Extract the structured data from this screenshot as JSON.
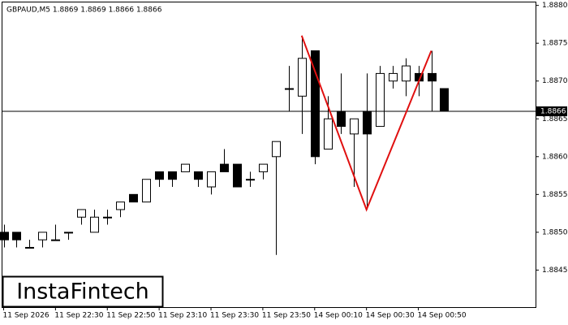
{
  "chart_data": {
    "type": "candlestick",
    "title": "GBPAUD,M5  1.8869 1.8869 1.8866 1.8866",
    "watermark": "InstaFintech",
    "categories": [
      "11 Sep 2026",
      null,
      null,
      null,
      "11 Sep 22:30",
      null,
      null,
      null,
      "11 Sep 22:50",
      null,
      null,
      null,
      "11 Sep 23:10",
      null,
      null,
      null,
      "11 Sep 23:30",
      null,
      null,
      null,
      "11 Sep 23:50",
      null,
      null,
      null,
      "14 Sep 00:10",
      null,
      null,
      null,
      "14 Sep 00:30",
      null,
      null,
      null,
      "14 Sep 00:50",
      null,
      null
    ],
    "open": [
      1.885,
      1.885,
      1.8848,
      1.8849,
      1.8849,
      1.885,
      1.8852,
      1.885,
      1.8852,
      1.8853,
      1.8855,
      1.8854,
      1.8858,
      1.8858,
      1.8858,
      1.8858,
      1.8856,
      1.8859,
      1.8859,
      1.8857,
      1.8858,
      1.886,
      1.8869,
      1.8868,
      1.8874,
      1.8861,
      1.8866,
      1.8863,
      1.8866,
      1.8864,
      1.887,
      1.887,
      1.8871,
      1.8871,
      1.8869
    ],
    "high": [
      1.8851,
      1.885,
      1.8849,
      1.885,
      1.8851,
      1.885,
      1.8853,
      1.8853,
      1.8853,
      1.8854,
      1.8855,
      1.8857,
      1.8858,
      1.8858,
      1.8859,
      1.8858,
      1.8858,
      1.8861,
      1.8859,
      1.8858,
      1.8859,
      1.8862,
      1.8872,
      1.8876,
      1.8874,
      1.8868,
      1.8871,
      1.8865,
      1.8871,
      1.8872,
      1.8872,
      1.8873,
      1.8872,
      1.8874,
      1.8869
    ],
    "low": [
      1.8848,
      1.8848,
      1.8848,
      1.8848,
      1.8849,
      1.8849,
      1.8851,
      1.885,
      1.8851,
      1.8852,
      1.8854,
      1.8854,
      1.8856,
      1.8856,
      1.8858,
      1.8856,
      1.8855,
      1.8858,
      1.8856,
      1.8856,
      1.8857,
      1.8847,
      1.8866,
      1.8863,
      1.8859,
      1.8861,
      1.8863,
      1.8856,
      1.8853,
      1.8864,
      1.8869,
      1.8868,
      1.8868,
      1.8866,
      1.8866
    ],
    "close": [
      1.8849,
      1.8849,
      1.8848,
      1.885,
      1.8849,
      1.885,
      1.8853,
      1.8852,
      1.8852,
      1.8854,
      1.8854,
      1.8857,
      1.8857,
      1.8857,
      1.8859,
      1.8857,
      1.8858,
      1.8858,
      1.8856,
      1.8857,
      1.8859,
      1.8862,
      1.8869,
      1.8873,
      1.886,
      1.8865,
      1.8864,
      1.8865,
      1.8863,
      1.8871,
      1.8871,
      1.8872,
      1.887,
      1.887,
      1.8866
    ],
    "up_color": "#ffffff",
    "down_color": "#000000",
    "ylim": [
      1.88401,
      1.88805
    ],
    "yticks": [
      1.8845,
      {
        "value": 1.885,
        "label": "1.8850"
      },
      1.8855,
      {
        "value": 1.886,
        "label": "1.8860"
      },
      1.8865,
      {
        "value": 1.887,
        "label": "1.8870"
      },
      1.8875,
      {
        "value": 1.888,
        "label": "1.8880"
      }
    ],
    "current_price": 1.8866,
    "pattern_line": {
      "color": "#e01010",
      "points": [
        [
          23,
          1.8876
        ],
        [
          28,
          1.8853
        ],
        [
          33,
          1.8874
        ]
      ]
    }
  }
}
